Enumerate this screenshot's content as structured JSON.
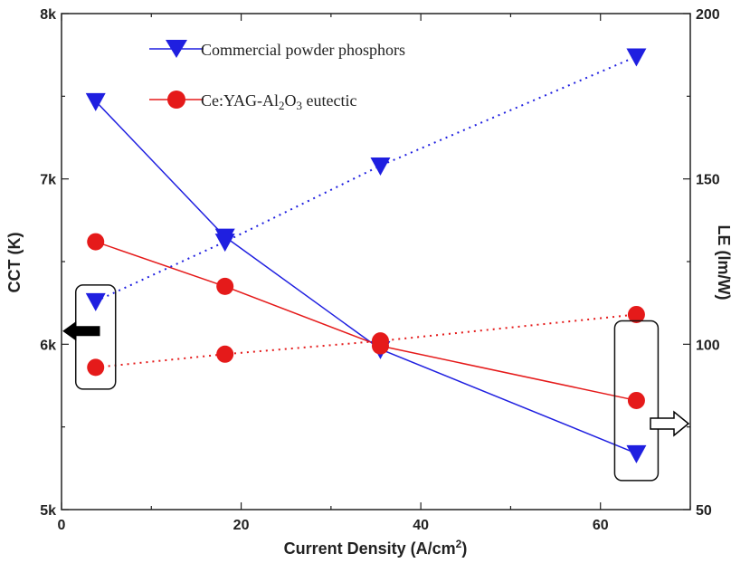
{
  "chart_data": {
    "type": "line",
    "x_axis": {
      "label_prefix": "Current Density (A/cm",
      "label_sup": "2",
      "label_suffix": ")",
      "range": [
        0,
        70
      ],
      "ticks": [
        0,
        20,
        40,
        60
      ],
      "tick_labels": [
        "0",
        "20",
        "40",
        "60"
      ]
    },
    "y_left": {
      "label": "CCT (K)",
      "range": [
        5000,
        8000
      ],
      "ticks": [
        5000,
        6000,
        7000,
        8000
      ],
      "tick_labels": [
        "5k",
        "6k",
        "7k",
        "8k"
      ]
    },
    "y_right": {
      "label": "LE (lm/W)",
      "range": [
        50,
        200
      ],
      "ticks": [
        50,
        100,
        150,
        200
      ],
      "tick_labels": [
        "50",
        "100",
        "150",
        "200"
      ]
    },
    "legend": {
      "placement": "top-center",
      "entries": [
        {
          "label": "Commercial powder phosphors",
          "marker": "triangle-down",
          "color": "#1f1fe0"
        },
        {
          "label_pre": "Ce:YAG-Al",
          "label_sub1": "2",
          "label_mid": "O",
          "label_sub2": "3",
          "label_post": " eutectic",
          "marker": "circle",
          "color": "#e51a1a"
        }
      ]
    },
    "series": [
      {
        "name": "Commercial powder phosphors",
        "axis": "left",
        "style": "solid",
        "marker": "triangle-down",
        "color": "#1f1fe0",
        "x": [
          3.8,
          18.2,
          35.5,
          64.0
        ],
        "values": [
          7470,
          6650,
          5970,
          5340
        ]
      },
      {
        "name": "Ce:YAG-Al2O3 eutectic",
        "axis": "left",
        "style": "solid",
        "marker": "circle",
        "color": "#e51a1a",
        "x": [
          3.8,
          18.2,
          35.5,
          64.0
        ],
        "values": [
          6620,
          6350,
          5990,
          5660
        ]
      },
      {
        "name": "Commercial powder phosphors",
        "axis": "right",
        "style": "dotted",
        "marker": "triangle-down",
        "color": "#1f1fe0",
        "x": [
          3.8,
          18.2,
          35.5,
          64.0
        ],
        "values": [
          113,
          131,
          154,
          187
        ]
      },
      {
        "name": "Ce:YAG-Al2O3 eutectic",
        "axis": "right",
        "style": "dotted",
        "marker": "circle",
        "color": "#e51a1a",
        "x": [
          3.8,
          18.2,
          35.5,
          64.0
        ],
        "values": [
          93,
          97,
          101,
          109
        ]
      }
    ],
    "annotations": [
      {
        "type": "arrow",
        "direction": "left",
        "fill": "#000000",
        "meaning": "left axis (CCT)"
      },
      {
        "type": "arrow",
        "direction": "right",
        "fill": "#ffffff",
        "meaning": "right axis (LE)"
      }
    ]
  }
}
